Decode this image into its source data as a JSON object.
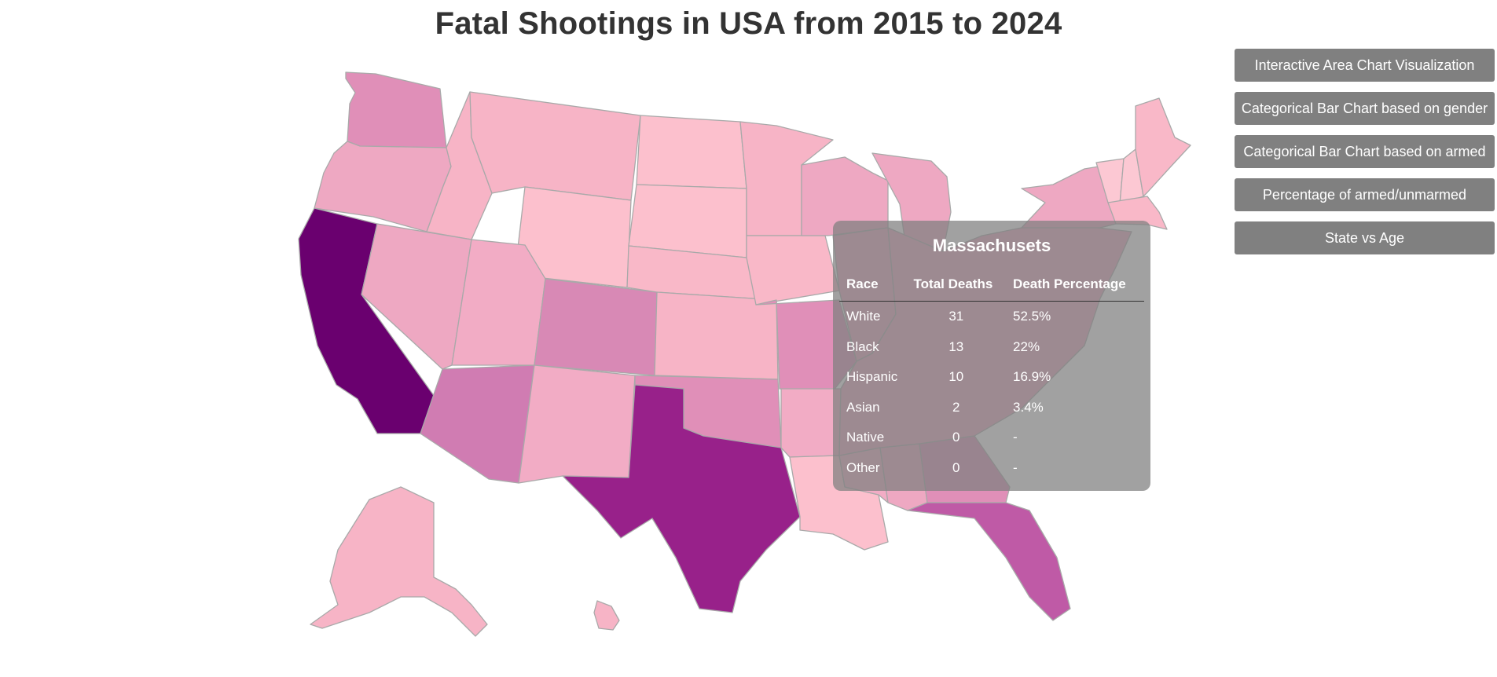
{
  "page": {
    "title": "Fatal Shootings in USA from 2015 to 2024"
  },
  "navigation": {
    "buttons": [
      {
        "label": "Interactive Area Chart Visualization"
      },
      {
        "label": "Categorical Bar Chart based on gender"
      },
      {
        "label": "Categorical Bar Chart based on armed"
      },
      {
        "label": "Percentage of armed/unmarmed"
      },
      {
        "label": "State vs Age"
      }
    ]
  },
  "tooltip": {
    "state": "Massachusets",
    "headers": {
      "race": "Race",
      "total": "Total Deaths",
      "percentage": "Death Percentage"
    },
    "rows": [
      {
        "race": "White",
        "total": "31",
        "percentage": "52.5%"
      },
      {
        "race": "Black",
        "total": "13",
        "percentage": "22%"
      },
      {
        "race": "Hispanic",
        "total": "10",
        "percentage": "16.9%"
      },
      {
        "race": "Asian",
        "total": "2",
        "percentage": "3.4%"
      },
      {
        "race": "Native",
        "total": "0",
        "percentage": "-"
      },
      {
        "race": "Other",
        "total": "0",
        "percentage": "-"
      }
    ]
  },
  "map": {
    "type": "choropleth",
    "color_scale": [
      "#fcc5d0",
      "#f7b4c6",
      "#f1a7c2",
      "#e08fb8",
      "#d07cb2",
      "#bf5aa6",
      "#98218a",
      "#6a006f"
    ],
    "state_fills": {
      "california": "#6a006f",
      "texas": "#98218a",
      "florida": "#bf5aa6",
      "arizona": "#d07cb2",
      "colorado": "#d889b5",
      "washington": "#e08fb8",
      "oklahoma": "#e08fb8",
      "missouri": "#e08fb8",
      "georgia": "#e08fb8",
      "oregon": "#eea8c2",
      "nevada": "#eea8c2",
      "utah": "#f2acc5",
      "idaho": "#f7b4c6",
      "montana": "#f7b4c6",
      "wyoming": "#fcc0cd",
      "north-dakota": "#fcc0cd",
      "south-dakota": "#fcc0cd",
      "nebraska": "#f9b8c8",
      "kansas": "#f7b4c6",
      "new-mexico": "#f2acc5",
      "minnesota": "#f7b4c6",
      "iowa": "#f9b8c8",
      "wisconsin": "#eea8c2",
      "michigan": "#eea8c2",
      "illinois": "#eea8c2",
      "arkansas": "#f2acc5",
      "louisiana": "#fcc0cd",
      "mississippi": "#f2acc5",
      "alabama": "#eea8c2",
      "alaska": "#f7b4c6",
      "hawaii": "#f7b4c6",
      "new-york": "#eea8c2",
      "maine": "#f9b8c8",
      "vermont": "#fcc8d3",
      "new-hampshire": "#fcc8d3",
      "massachusetts": "#f9b8c8",
      "east-block": "#eea8c2"
    }
  }
}
